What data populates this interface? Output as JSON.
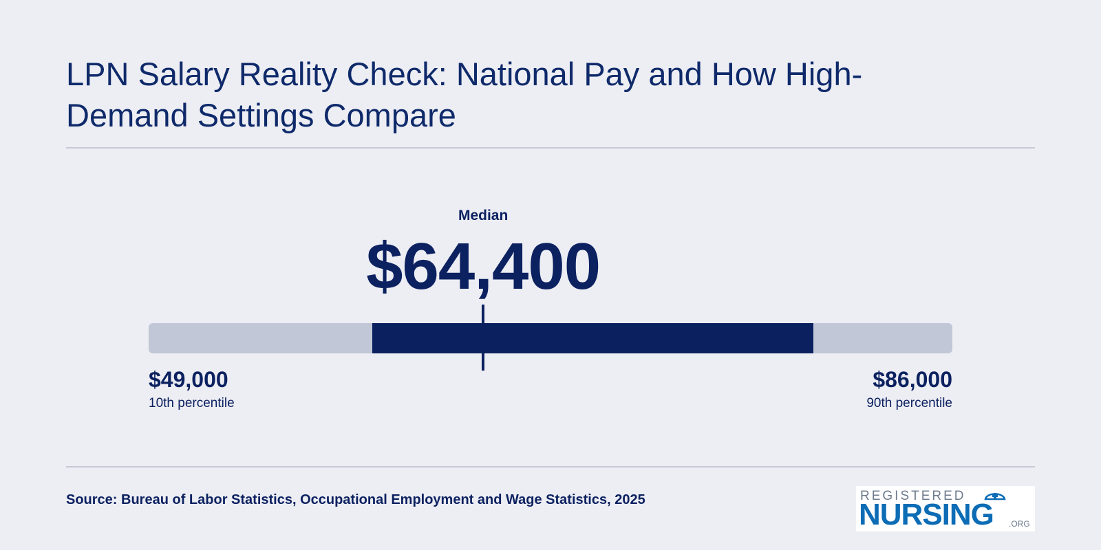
{
  "title": "LPN Salary Reality Check: National Pay and How High-Demand Settings Compare",
  "chart_data": {
    "type": "range",
    "min": 49000,
    "max": 86000,
    "median": 64400,
    "iqr": [
      59300,
      79600
    ],
    "median_label": "Median",
    "median_display": "$64,400",
    "low": {
      "display": "$49,000",
      "caption": "10th percentile"
    },
    "high": {
      "display": "$86,000",
      "caption": "90th percentile"
    }
  },
  "source": "Source: Bureau of Labor Statistics, Occupational Employment and Wage Statistics, 2025",
  "logo": {
    "top": "REGISTERED",
    "main": "NURSING",
    "org": ".ORG"
  },
  "colors": {
    "background": "#edeef4",
    "text": "#0c2160",
    "track": "#c2c7d8",
    "fill": "#0b205e",
    "logo_blue": "#0c6cb5"
  }
}
